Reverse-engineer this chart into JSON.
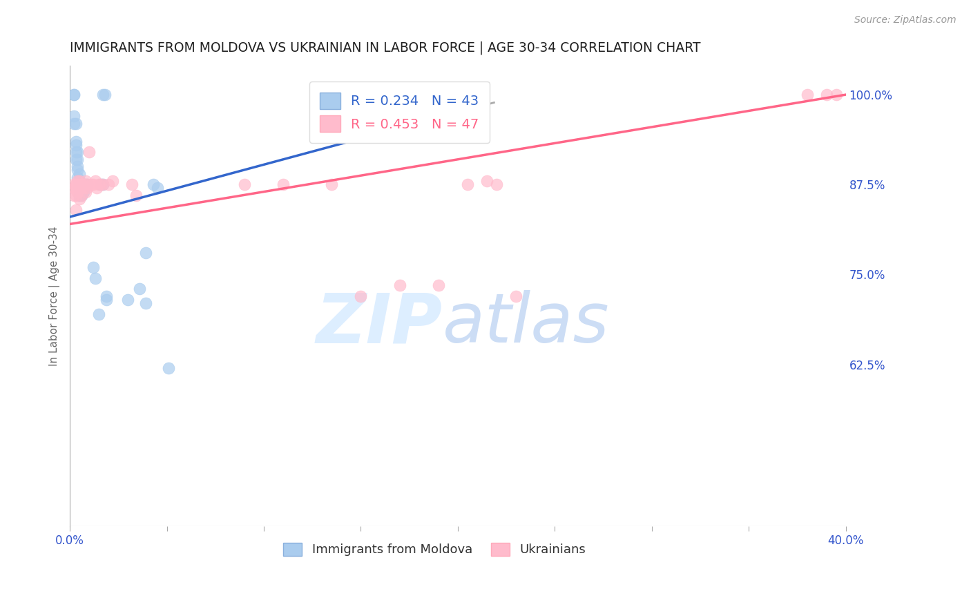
{
  "title": "IMMIGRANTS FROM MOLDOVA VS UKRAINIAN IN LABOR FORCE | AGE 30-34 CORRELATION CHART",
  "source": "Source: ZipAtlas.com",
  "ylabel": "In Labor Force | Age 30-34",
  "xmin": 0.0,
  "xmax": 0.4,
  "ymin": 0.4,
  "ymax": 1.04,
  "yticks": [
    0.625,
    0.75,
    0.875,
    1.0
  ],
  "ytick_labels": [
    "62.5%",
    "75.0%",
    "87.5%",
    "100.0%"
  ],
  "xticks": [
    0.0,
    0.05,
    0.1,
    0.15,
    0.2,
    0.25,
    0.3,
    0.35,
    0.4
  ],
  "xtick_labels": [
    "0.0%",
    "",
    "",
    "",
    "",
    "",
    "",
    "",
    "40.0%"
  ],
  "legend_entries": [
    {
      "label": "R = 0.234   N = 43",
      "color": "#6699cc"
    },
    {
      "label": "R = 0.453   N = 47",
      "color": "#ff6688"
    }
  ],
  "legend_labels_bottom": [
    "Immigrants from Moldova",
    "Ukrainians"
  ],
  "moldova_color": "#aaccee",
  "ukraine_color": "#ffbbcc",
  "moldova_line_color": "#3366cc",
  "ukraine_line_color": "#ff6688",
  "watermark_zip": "ZIP",
  "watermark_atlas": "atlas",
  "watermark_color": "#ddeeff",
  "moldova_x": [
    0.002,
    0.002,
    0.002,
    0.002,
    0.003,
    0.003,
    0.003,
    0.003,
    0.003,
    0.004,
    0.004,
    0.004,
    0.004,
    0.004,
    0.005,
    0.005,
    0.005,
    0.005,
    0.005,
    0.006,
    0.006,
    0.006,
    0.007,
    0.007,
    0.007,
    0.008,
    0.009,
    0.012,
    0.013,
    0.015,
    0.016,
    0.017,
    0.017,
    0.018,
    0.019,
    0.019,
    0.03,
    0.036,
    0.039,
    0.039,
    0.043,
    0.045,
    0.051
  ],
  "moldova_y": [
    1.0,
    1.0,
    0.97,
    0.96,
    0.96,
    0.935,
    0.93,
    0.92,
    0.91,
    0.92,
    0.91,
    0.9,
    0.895,
    0.885,
    0.89,
    0.88,
    0.875,
    0.87,
    0.86,
    0.875,
    0.87,
    0.86,
    0.875,
    0.87,
    0.865,
    0.875,
    0.875,
    0.76,
    0.745,
    0.695,
    0.875,
    0.875,
    1.0,
    1.0,
    0.72,
    0.715,
    0.715,
    0.73,
    0.78,
    0.71,
    0.875,
    0.87,
    0.62
  ],
  "ukraine_x": [
    0.002,
    0.002,
    0.002,
    0.003,
    0.003,
    0.003,
    0.003,
    0.004,
    0.004,
    0.004,
    0.005,
    0.005,
    0.005,
    0.005,
    0.006,
    0.006,
    0.007,
    0.007,
    0.008,
    0.008,
    0.009,
    0.009,
    0.01,
    0.011,
    0.012,
    0.013,
    0.014,
    0.015,
    0.016,
    0.017,
    0.02,
    0.022,
    0.032,
    0.034,
    0.09,
    0.11,
    0.135,
    0.15,
    0.17,
    0.19,
    0.205,
    0.215,
    0.22,
    0.23,
    0.38,
    0.39,
    0.395
  ],
  "ukraine_y": [
    0.875,
    0.87,
    0.86,
    0.875,
    0.87,
    0.86,
    0.84,
    0.88,
    0.875,
    0.865,
    0.88,
    0.875,
    0.87,
    0.855,
    0.875,
    0.86,
    0.875,
    0.87,
    0.88,
    0.865,
    0.875,
    0.87,
    0.92,
    0.875,
    0.875,
    0.88,
    0.87,
    0.875,
    0.875,
    0.875,
    0.875,
    0.88,
    0.875,
    0.86,
    0.875,
    0.875,
    0.875,
    0.72,
    0.735,
    0.735,
    0.875,
    0.88,
    0.875,
    0.72,
    1.0,
    1.0,
    1.0
  ],
  "mol_line_x0": 0.0,
  "mol_line_x1": 0.22,
  "mol_line_y0": 0.83,
  "mol_line_y1": 0.99,
  "ukr_line_x0": 0.0,
  "ukr_line_x1": 0.4,
  "ukr_line_y0": 0.82,
  "ukr_line_y1": 1.0,
  "axis_label_color": "#3355cc",
  "tick_color": "#3355cc",
  "grid_color": "#cccccc",
  "title_color": "#222222",
  "title_fontsize": 13.5,
  "ylabel_fontsize": 11,
  "source_fontsize": 10
}
